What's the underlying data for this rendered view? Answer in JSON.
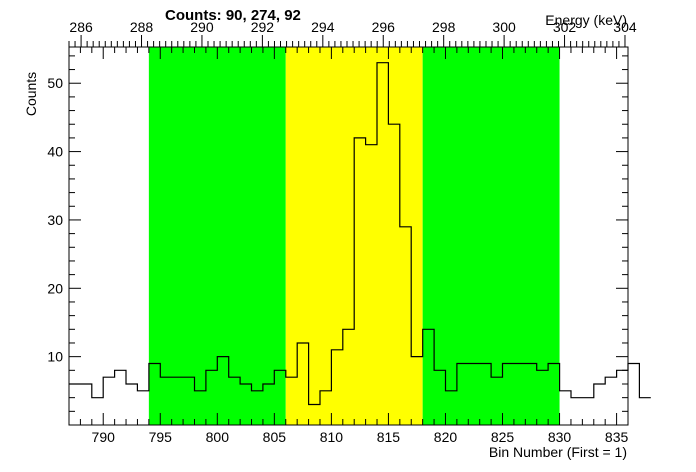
{
  "chart_data": {
    "type": "bar",
    "title": "Counts:   90,   274,   92",
    "xlabel": "Bin Number (First = 1)",
    "ylabel": "Counts",
    "x2label": "Energy (keV)",
    "xlim": [
      787,
      836
    ],
    "ylim": [
      0,
      55.3
    ],
    "x2lim": [
      285.6,
      304.1
    ],
    "x_ticks": [
      "790",
      "795",
      "800",
      "805",
      "810",
      "815",
      "820",
      "825",
      "830",
      "835"
    ],
    "x2_ticks": [
      "286",
      "288",
      "290",
      "292",
      "294",
      "296",
      "298",
      "300",
      "302",
      "304"
    ],
    "y_ticks": [
      "10",
      "20",
      "30",
      "40",
      "50"
    ],
    "grid": false,
    "bin_start": 787,
    "bin_width": 1,
    "values": [
      6,
      6,
      4,
      7,
      8,
      6,
      5,
      9,
      7,
      7,
      7,
      5,
      8,
      10,
      7,
      6,
      5,
      6,
      8,
      7,
      12,
      3,
      5,
      11,
      14,
      42,
      41,
      53,
      44,
      29,
      10,
      14,
      8,
      5,
      9,
      9,
      9,
      7,
      9,
      9,
      9,
      8,
      9,
      5,
      4,
      4,
      6,
      7,
      8,
      9,
      4
    ],
    "regions": [
      {
        "name": "background-left",
        "start": 794,
        "end": 806,
        "color": "#00ff00"
      },
      {
        "name": "peak",
        "start": 806,
        "end": 818,
        "color": "#ffff00"
      },
      {
        "name": "background-right",
        "start": 818,
        "end": 830,
        "color": "#00ff00"
      }
    ],
    "line_color": "#000000"
  }
}
